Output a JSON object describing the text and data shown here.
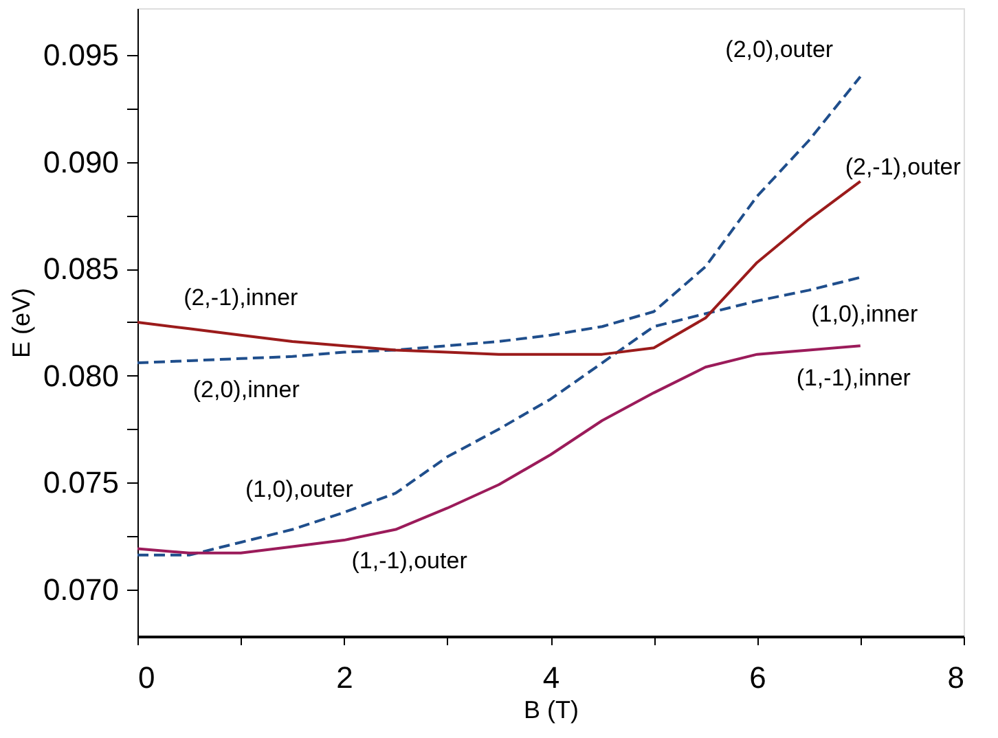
{
  "chart_data": {
    "type": "line",
    "xlabel": "B (T)",
    "ylabel": "E (eV)",
    "xlim": [
      0,
      8
    ],
    "ylim": [
      0.0678,
      0.0972
    ],
    "xticks": [
      0,
      {
        "value": 1,
        "label": null
      },
      2,
      {
        "value": 3,
        "label": null
      },
      4,
      {
        "value": 5,
        "label": null
      },
      6,
      {
        "value": 7,
        "label": null
      },
      8
    ],
    "yticks": [
      {
        "value": 0.07,
        "label": "0.070"
      },
      {
        "value": 0.0725,
        "label": null
      },
      {
        "value": 0.075,
        "label": "0.075"
      },
      {
        "value": 0.0775,
        "label": null
      },
      {
        "value": 0.08,
        "label": "0.080"
      },
      {
        "value": 0.0825,
        "label": null
      },
      {
        "value": 0.085,
        "label": "0.085"
      },
      {
        "value": 0.0875,
        "label": null
      },
      {
        "value": 0.09,
        "label": "0.090"
      },
      {
        "value": 0.0925,
        "label": null
      },
      {
        "value": 0.095,
        "label": "0.095"
      }
    ],
    "grid": false,
    "marker": "none",
    "x": [
      0,
      0.5,
      1,
      1.5,
      2,
      2.5,
      3,
      3.5,
      4,
      4.5,
      5,
      5.5,
      6,
      6.5,
      7
    ],
    "series": [
      {
        "color": "#1f4e8c",
        "line_style": "dashed",
        "values": [
          0.0806,
          0.0807,
          0.0808,
          0.0809,
          0.0811,
          0.0812,
          0.0814,
          0.0816,
          0.0819,
          0.0823,
          0.083,
          0.0851,
          0.0884,
          0.091,
          0.094
        ]
      },
      {
        "color": "#1f4e8c",
        "line_style": "dashed",
        "values": [
          0.0716,
          0.0716,
          0.0722,
          0.0728,
          0.0736,
          0.0745,
          0.0762,
          0.0775,
          0.0789,
          0.0806,
          0.0823,
          0.0829,
          0.0835,
          0.084,
          0.0846
        ]
      },
      {
        "color": "#9b1b1b",
        "line_style": "solid",
        "values": [
          0.0825,
          0.0822,
          0.0819,
          0.0816,
          0.0814,
          0.0812,
          0.0811,
          0.081,
          0.081,
          0.081,
          0.0813,
          0.0827,
          0.0853,
          0.0873,
          0.0891
        ]
      },
      {
        "color": "#9b1b5a",
        "line_style": "solid",
        "values": [
          0.0719,
          0.0717,
          0.0717,
          0.072,
          0.0723,
          0.0728,
          0.0738,
          0.0749,
          0.0763,
          0.0779,
          0.0792,
          0.0804,
          0.081,
          0.0812,
          0.0814
        ]
      }
    ],
    "annotations": [
      {
        "text": "(2,0),outer",
        "x": 7,
        "y": 0.094
      },
      {
        "text": "(2,-1),outer",
        "x": 7,
        "y": 0.0891
      },
      {
        "text": "(1,0),inner",
        "x": 7,
        "y": 0.0846
      },
      {
        "text": "(1,-1),inner",
        "x": 7,
        "y": 0.0814
      },
      {
        "text": "(2,-1),inner",
        "x": 1,
        "y": 0.0819
      },
      {
        "text": "(2,0),inner",
        "x": 1,
        "y": 0.0808
      },
      {
        "text": "(1,0),outer",
        "x": 1.5,
        "y": 0.0728
      },
      {
        "text": "(1,-1),outer",
        "x": 2.5,
        "y": 0.0728
      }
    ]
  }
}
